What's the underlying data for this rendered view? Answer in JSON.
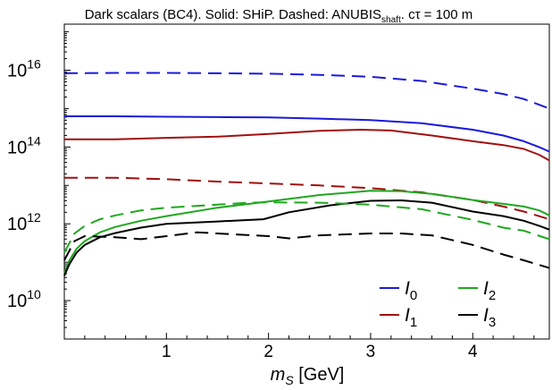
{
  "chart_data": {
    "type": "line",
    "title": {
      "prefix": "Dark scalars (BC4). Solid: SHiP. Dashed: ANUBIS",
      "prefix_sub": "shaft",
      "suffix": ". cτ = 100 m"
    },
    "xlabel": {
      "var": "m",
      "var_sub": "S",
      "unit": " [GeV]"
    },
    "ylabel": "",
    "x_range": [
      0,
      4.75
    ],
    "y_log10_range": [
      9.0,
      17.2
    ],
    "y_scale": "log",
    "x_ticks": [
      {
        "value": 1,
        "label": "1"
      },
      {
        "value": 2,
        "label": "2"
      },
      {
        "value": 3,
        "label": "3"
      },
      {
        "value": 4,
        "label": "4"
      }
    ],
    "y_ticks": [
      {
        "log10": 10,
        "base": "10",
        "exp": "10"
      },
      {
        "log10": 12,
        "base": "10",
        "exp": "12"
      },
      {
        "log10": 14,
        "base": "10",
        "exp": "14"
      },
      {
        "log10": 16,
        "base": "10",
        "exp": "16"
      }
    ],
    "grid": false,
    "legend_position": "bottom-right",
    "legend": [
      {
        "symbol": "I",
        "sub": "0",
        "color": "#1a1adb"
      },
      {
        "symbol": "I",
        "sub": "2",
        "color": "#1fa71f"
      },
      {
        "symbol": "I",
        "sub": "1",
        "color": "#a01010"
      },
      {
        "symbol": "I",
        "sub": "3",
        "color": "#000000"
      }
    ],
    "series": [
      {
        "id": "I0_solid",
        "color": "#1a1adb",
        "dash": false,
        "points": [
          [
            0,
            14.8
          ],
          [
            0.5,
            14.8
          ],
          [
            1,
            14.79
          ],
          [
            1.5,
            14.78
          ],
          [
            2,
            14.77
          ],
          [
            2.5,
            14.74
          ],
          [
            3,
            14.7
          ],
          [
            3.5,
            14.62
          ],
          [
            4,
            14.45
          ],
          [
            4.3,
            14.3
          ],
          [
            4.5,
            14.15
          ],
          [
            4.65,
            14.0
          ],
          [
            4.75,
            13.88
          ]
        ]
      },
      {
        "id": "I1_solid",
        "color": "#a01010",
        "dash": false,
        "points": [
          [
            0,
            14.2
          ],
          [
            0.5,
            14.2
          ],
          [
            1,
            14.24
          ],
          [
            1.5,
            14.27
          ],
          [
            2,
            14.34
          ],
          [
            2.5,
            14.42
          ],
          [
            2.9,
            14.45
          ],
          [
            3.2,
            14.43
          ],
          [
            3.6,
            14.3
          ],
          [
            4,
            14.15
          ],
          [
            4.3,
            14.05
          ],
          [
            4.5,
            13.95
          ],
          [
            4.65,
            13.8
          ],
          [
            4.75,
            13.65
          ]
        ]
      },
      {
        "id": "I0_dashed",
        "color": "#1a1adb",
        "dash": true,
        "points": [
          [
            0,
            15.92
          ],
          [
            0.5,
            15.93
          ],
          [
            1,
            15.93
          ],
          [
            1.5,
            15.92
          ],
          [
            2,
            15.91
          ],
          [
            2.5,
            15.88
          ],
          [
            3,
            15.83
          ],
          [
            3.5,
            15.72
          ],
          [
            4,
            15.52
          ],
          [
            4.3,
            15.38
          ],
          [
            4.5,
            15.25
          ],
          [
            4.65,
            15.1
          ],
          [
            4.75,
            15.0
          ]
        ]
      },
      {
        "id": "I1_dashed",
        "color": "#a01010",
        "dash": true,
        "points": [
          [
            0,
            13.2
          ],
          [
            0.5,
            13.2
          ],
          [
            1,
            13.16
          ],
          [
            1.5,
            13.1
          ],
          [
            2,
            13.05
          ],
          [
            2.5,
            13.0
          ],
          [
            3,
            12.93
          ],
          [
            3.5,
            12.82
          ],
          [
            4,
            12.62
          ],
          [
            4.3,
            12.45
          ],
          [
            4.5,
            12.32
          ],
          [
            4.75,
            12.12
          ]
        ]
      },
      {
        "id": "I2_solid",
        "color": "#1fa71f",
        "dash": false,
        "points": [
          [
            0,
            10.7
          ],
          [
            0.05,
            11.05
          ],
          [
            0.12,
            11.35
          ],
          [
            0.2,
            11.55
          ],
          [
            0.35,
            11.78
          ],
          [
            0.5,
            11.92
          ],
          [
            0.75,
            12.08
          ],
          [
            1,
            12.2
          ],
          [
            1.5,
            12.42
          ],
          [
            2,
            12.58
          ],
          [
            2.5,
            12.75
          ],
          [
            3,
            12.86
          ],
          [
            3.3,
            12.85
          ],
          [
            3.6,
            12.78
          ],
          [
            4,
            12.62
          ],
          [
            4.3,
            12.52
          ],
          [
            4.5,
            12.45
          ],
          [
            4.65,
            12.35
          ],
          [
            4.75,
            12.22
          ]
        ]
      },
      {
        "id": "I3_solid",
        "color": "#000000",
        "dash": false,
        "points": [
          [
            0,
            10.65
          ],
          [
            0.05,
            10.95
          ],
          [
            0.12,
            11.25
          ],
          [
            0.2,
            11.45
          ],
          [
            0.35,
            11.65
          ],
          [
            0.5,
            11.76
          ],
          [
            0.75,
            11.9
          ],
          [
            1,
            12.0
          ],
          [
            1.5,
            12.06
          ],
          [
            1.95,
            12.12
          ],
          [
            2.2,
            12.3
          ],
          [
            2.6,
            12.48
          ],
          [
            3.0,
            12.6
          ],
          [
            3.3,
            12.61
          ],
          [
            3.6,
            12.55
          ],
          [
            4,
            12.32
          ],
          [
            4.3,
            12.2
          ],
          [
            4.5,
            12.08
          ],
          [
            4.65,
            11.95
          ],
          [
            4.75,
            11.85
          ]
        ]
      },
      {
        "id": "I2_dashed",
        "color": "#1fa71f",
        "dash": true,
        "points": [
          [
            0,
            11.25
          ],
          [
            0.1,
            11.75
          ],
          [
            0.2,
            11.95
          ],
          [
            0.35,
            12.12
          ],
          [
            0.5,
            12.22
          ],
          [
            0.75,
            12.35
          ],
          [
            1,
            12.42
          ],
          [
            1.5,
            12.5
          ],
          [
            1.8,
            12.55
          ],
          [
            2,
            12.56
          ],
          [
            2.5,
            12.55
          ],
          [
            3,
            12.5
          ],
          [
            3.5,
            12.38
          ],
          [
            4,
            12.1
          ],
          [
            4.3,
            11.9
          ],
          [
            4.5,
            11.82
          ],
          [
            4.75,
            11.6
          ]
        ]
      },
      {
        "id": "I3_dashed",
        "color": "#000000",
        "dash": true,
        "points": [
          [
            0,
            11.05
          ],
          [
            0.1,
            11.55
          ],
          [
            0.2,
            11.68
          ],
          [
            0.5,
            11.65
          ],
          [
            0.75,
            11.6
          ],
          [
            1,
            11.68
          ],
          [
            1.3,
            11.78
          ],
          [
            1.5,
            11.75
          ],
          [
            2,
            11.68
          ],
          [
            2.2,
            11.62
          ],
          [
            2.5,
            11.7
          ],
          [
            3,
            11.75
          ],
          [
            3.3,
            11.75
          ],
          [
            3.6,
            11.7
          ],
          [
            4,
            11.45
          ],
          [
            4.3,
            11.2
          ],
          [
            4.5,
            11.05
          ],
          [
            4.75,
            10.85
          ]
        ]
      }
    ]
  }
}
